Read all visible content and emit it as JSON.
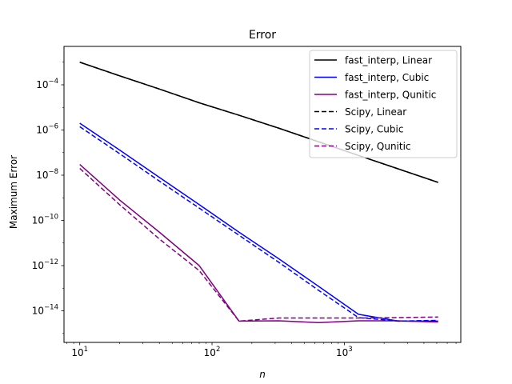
{
  "chart_data": {
    "type": "line",
    "title": "Error",
    "xlabel": "n",
    "ylabel": "Maximum Error",
    "xscale": "log",
    "yscale": "log",
    "xlim": [
      7.6,
      7600
    ],
    "ylim": [
      4e-16,
      0.005
    ],
    "x_ticks": [
      {
        "value": 10,
        "base": "10",
        "exp": "1"
      },
      {
        "value": 100,
        "base": "10",
        "exp": "2"
      },
      {
        "value": 1000,
        "base": "10",
        "exp": "3"
      }
    ],
    "y_ticks": [
      {
        "value": 0.0001,
        "base": "10",
        "exp": "−4"
      },
      {
        "value": 1e-06,
        "base": "10",
        "exp": "−6"
      },
      {
        "value": 1e-08,
        "base": "10",
        "exp": "−8"
      },
      {
        "value": 1e-10,
        "base": "10",
        "exp": "−10"
      },
      {
        "value": 1e-12,
        "base": "10",
        "exp": "−12"
      },
      {
        "value": 1e-14,
        "base": "10",
        "exp": "−14"
      }
    ],
    "grid": false,
    "legend_position": "top-right",
    "series": [
      {
        "name": "fast_interp, Linear",
        "color": "#000000",
        "dash": "solid",
        "x": [
          10,
          20,
          40,
          80,
          160,
          320,
          640,
          1280,
          2560,
          5120
        ],
        "y": [
          0.001,
          0.00025,
          6.5e-05,
          1.6e-05,
          4.5e-06,
          1.2e-06,
          3e-07,
          7.5e-08,
          1.9e-08,
          4.8e-09
        ]
      },
      {
        "name": "fast_interp, Cubic",
        "color": "#0000ff",
        "dash": "solid",
        "x": [
          10,
          20,
          40,
          80,
          160,
          320,
          640,
          1280,
          2560,
          5120
        ],
        "y": [
          2e-06,
          1.3e-07,
          8e-09,
          5e-10,
          3e-11,
          2e-12,
          1.2e-13,
          7e-15,
          3.5e-15,
          3.5e-15
        ]
      },
      {
        "name": "fast_interp, Qunitic",
        "color": "#800080",
        "dash": "solid",
        "x": [
          10,
          20,
          40,
          80,
          160,
          320,
          640,
          1280,
          2560,
          5120
        ],
        "y": [
          3e-08,
          8e-10,
          3e-11,
          1e-12,
          3.5e-15,
          3.6e-15,
          3e-15,
          3.6e-15,
          3.6e-15,
          3.2e-15
        ]
      },
      {
        "name": "Scipy, Linear",
        "color": "#000000",
        "dash": "dashed",
        "x": [
          10,
          20,
          40,
          80,
          160,
          320,
          640,
          1280,
          2560,
          5120
        ],
        "y": [
          0.001,
          0.00025,
          6.5e-05,
          1.6e-05,
          4.5e-06,
          1.2e-06,
          3e-07,
          7.5e-08,
          1.9e-08,
          4.8e-09
        ]
      },
      {
        "name": "Scipy, Cubic",
        "color": "#0000ff",
        "dash": "dashed",
        "x": [
          10,
          20,
          40,
          80,
          160,
          320,
          640,
          1280,
          2560,
          5120
        ],
        "y": [
          1.4e-06,
          9e-08,
          5.5e-09,
          3.5e-10,
          2.2e-11,
          1.4e-12,
          8e-14,
          5e-15,
          3.5e-15,
          3.8e-15
        ]
      },
      {
        "name": "Scipy, Qunitic",
        "color": "#800080",
        "dash": "dashed",
        "x": [
          10,
          20,
          40,
          80,
          160,
          320,
          640,
          1280,
          2560,
          5120
        ],
        "y": [
          2e-08,
          5e-10,
          1.5e-11,
          6e-13,
          3.5e-15,
          4.8e-15,
          4.8e-15,
          4.8e-15,
          5e-15,
          5.3e-15
        ]
      }
    ]
  }
}
